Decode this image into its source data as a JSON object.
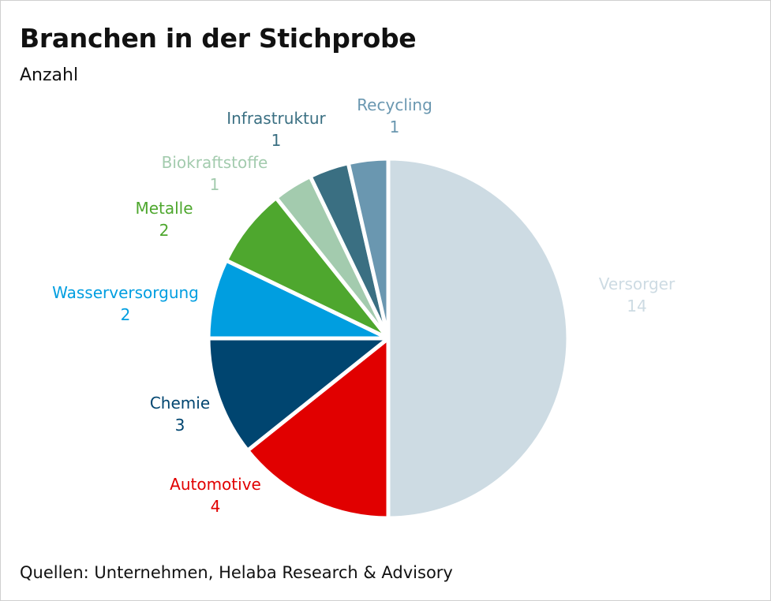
{
  "title": "Branchen in der Stichprobe",
  "subtitle": "Anzahl",
  "source": "Quellen: Unternehmen, Helaba Research & Advisory",
  "chart_data": {
    "type": "pie",
    "title": "Branchen in der Stichprobe",
    "subtitle": "Anzahl",
    "slices": [
      {
        "label": "Versorger",
        "value": 14,
        "color": "#cddbe3"
      },
      {
        "label": "Automotive",
        "value": 4,
        "color": "#e10000"
      },
      {
        "label": "Chemie",
        "value": 3,
        "color": "#004570"
      },
      {
        "label": "Wasserversorgung",
        "value": 2,
        "color": "#009ee0"
      },
      {
        "label": "Metalle",
        "value": 2,
        "color": "#4ea72e"
      },
      {
        "label": "Biokraftstoffe",
        "value": 1,
        "color": "#a3cbae"
      },
      {
        "label": "Infrastruktur",
        "value": 1,
        "color": "#3a6f82"
      },
      {
        "label": "Recycling",
        "value": 1,
        "color": "#6a97b0"
      }
    ]
  }
}
